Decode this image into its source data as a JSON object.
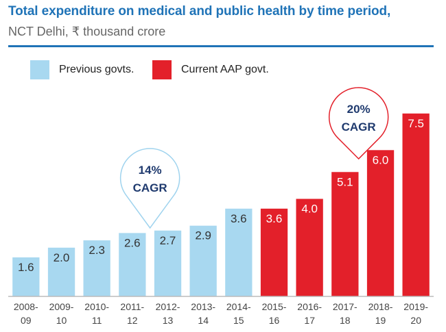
{
  "chart_data": {
    "type": "bar",
    "title": "Total expenditure on medical and public health by time period,",
    "subtitle": "NCT Delhi, ₹ thousand crore",
    "categories": [
      [
        "2008-",
        "09"
      ],
      [
        "2009-",
        "10"
      ],
      [
        "2010-",
        "11"
      ],
      [
        "2011-",
        "12"
      ],
      [
        "2012-",
        "13"
      ],
      [
        "2013-",
        "14"
      ],
      [
        "2014-",
        "15"
      ],
      [
        "2015-",
        "16"
      ],
      [
        "2016-",
        "17"
      ],
      [
        "2017-",
        "18"
      ],
      [
        "2018-",
        "19"
      ],
      [
        "2019-",
        "20"
      ]
    ],
    "values": [
      1.6,
      2.0,
      2.3,
      2.6,
      2.7,
      2.9,
      3.6,
      3.6,
      4.0,
      5.1,
      6.0,
      7.5
    ],
    "value_labels": [
      "1.6",
      "2.0",
      "2.3",
      "2.6",
      "2.7",
      "2.9",
      "3.6",
      "3.6",
      "4.0",
      "5.1",
      "6.0",
      "7.5"
    ],
    "series": [
      {
        "name": "Previous govts.",
        "color": "#a8d8f0",
        "indices": [
          0,
          1,
          2,
          3,
          4,
          5,
          6
        ]
      },
      {
        "name": "Current AAP govt.",
        "color": "#e3202a",
        "indices": [
          7,
          8,
          9,
          10,
          11
        ]
      }
    ],
    "annotations": [
      {
        "line1": "14%",
        "line2": "CAGR",
        "style": "light-blue-callout",
        "series": "Previous govts."
      },
      {
        "line1": "20%",
        "line2": "CAGR",
        "style": "red-callout",
        "series": "Current AAP govt."
      }
    ],
    "ylim": [
      0,
      8
    ],
    "grid": false,
    "legend_position": "top-left",
    "axis_color": "#bbbbbb"
  }
}
